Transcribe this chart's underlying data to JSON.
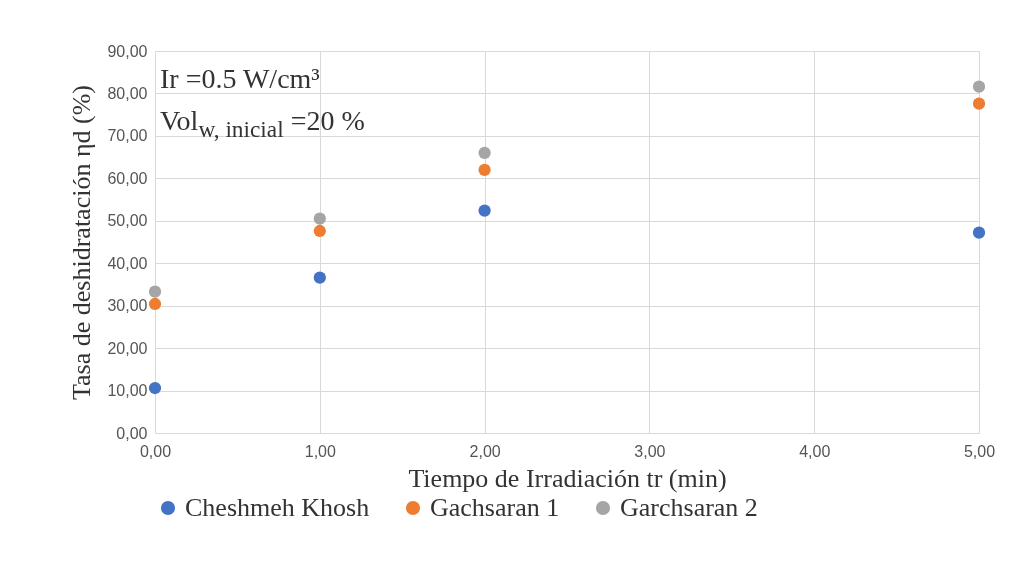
{
  "chart_data": {
    "type": "scatter",
    "xlabel": "Tiempo de Irradiación tr (min)",
    "ylabel": "Tasa de deshidratación ηd (%)",
    "annotations": [
      "Ir =0.5 W/cm³",
      "Vol$_{w, inicial}$ =20 %"
    ],
    "x": [
      0,
      1,
      2,
      5
    ],
    "series": [
      {
        "name": "Cheshmeh Khosh",
        "color": "#4472c4",
        "values": [
          10.6,
          36.6,
          52.4,
          47.2
        ]
      },
      {
        "name": "Gachsaran 1",
        "color": "#ed7d31",
        "values": [
          30.4,
          47.6,
          62.0,
          77.6
        ]
      },
      {
        "name": "Garchsaran 2",
        "color": "#a5a5a5",
        "values": [
          33.3,
          50.5,
          66.0,
          81.6
        ]
      }
    ],
    "xlim": [
      0,
      5
    ],
    "xticks": [
      {
        "value": 0,
        "label": "0,00"
      },
      {
        "value": 1,
        "label": "1,00"
      },
      {
        "value": 2,
        "label": "2,00"
      },
      {
        "value": 3,
        "label": "3,00"
      },
      {
        "value": 4,
        "label": "4,00"
      },
      {
        "value": 5,
        "label": "5,00"
      }
    ],
    "ylim": [
      0,
      90
    ],
    "yticks": [
      {
        "value": 0,
        "label": "0,00"
      },
      {
        "value": 10,
        "label": "10,00"
      },
      {
        "value": 20,
        "label": "20,00"
      },
      {
        "value": 30,
        "label": "30,00"
      },
      {
        "value": 40,
        "label": "40,00"
      },
      {
        "value": 50,
        "label": "50,00"
      },
      {
        "value": 60,
        "label": "60,00"
      },
      {
        "value": 70,
        "label": "70,00"
      },
      {
        "value": 80,
        "label": "80,00"
      },
      {
        "value": 90,
        "label": "90,00"
      }
    ],
    "grid": true,
    "legend": "bottom",
    "marker": "circle"
  }
}
